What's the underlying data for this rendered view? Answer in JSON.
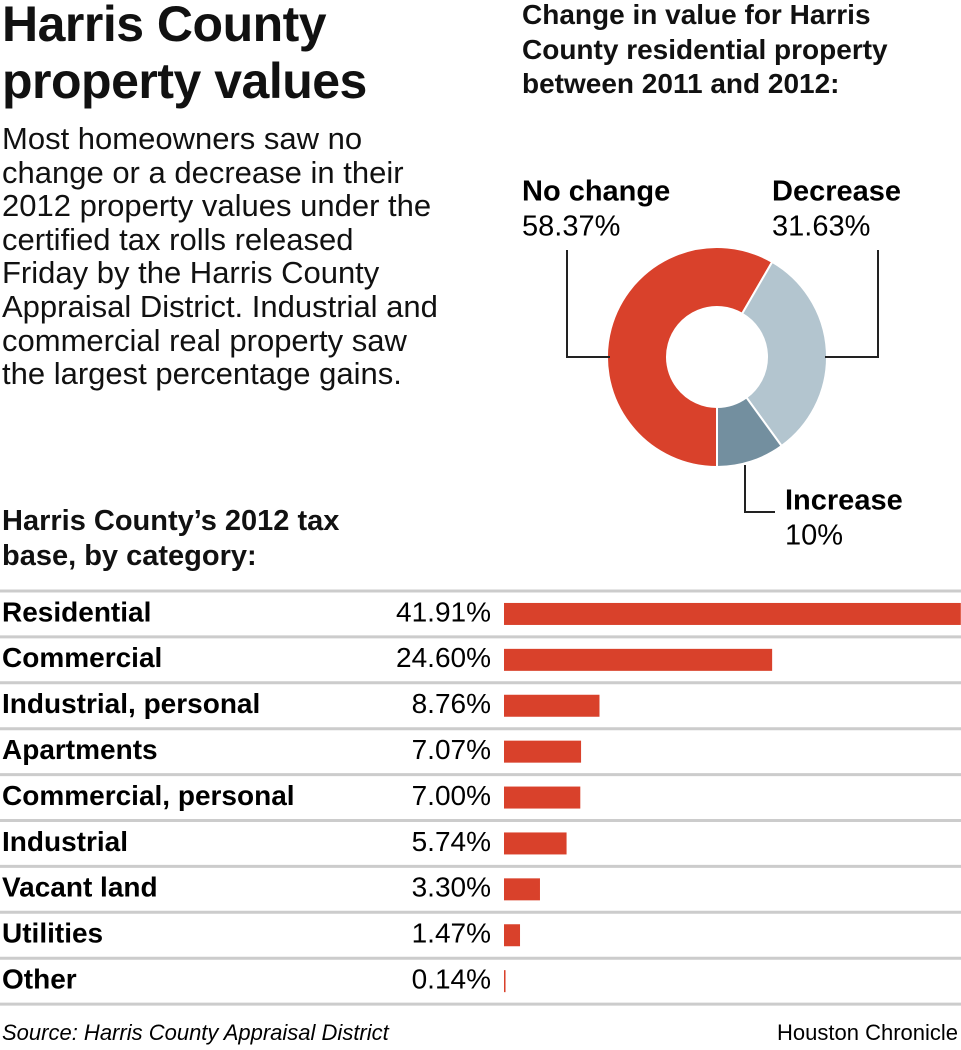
{
  "headline": "Harris County property values",
  "description": "Most homeowners saw no change or a decrease in their 2012 property values under the certified tax rolls released Friday by the Harris County Appraisal District. Industrial and commercial real property saw the largest percentage gains.",
  "chart_data": [
    {
      "type": "pie",
      "donut": true,
      "title": "Change in value for Harris County residential property between 2011 and 2012:",
      "categories": [
        "No change",
        "Decrease",
        "Increase"
      ],
      "values": [
        58.37,
        31.63,
        10
      ],
      "value_labels": [
        "58.37%",
        "31.63%",
        "10%"
      ],
      "colors": [
        "#d9412b",
        "#b3c5cf",
        "#738f9f"
      ]
    },
    {
      "type": "bar",
      "orientation": "horizontal",
      "title": "Harris County’s 2012 tax base, by category:",
      "categories": [
        "Residential",
        "Commercial",
        "Industrial, personal",
        "Apartments",
        "Commercial, personal",
        "Industrial",
        "Vacant land",
        "Utilities",
        "Other"
      ],
      "values": [
        41.91,
        24.6,
        8.76,
        7.07,
        7.0,
        5.74,
        3.3,
        1.47,
        0.14
      ],
      "value_labels": [
        "41.91%",
        "24.60%",
        "8.76%",
        "7.07%",
        "7.00%",
        "5.74%",
        "3.30%",
        "1.47%",
        "0.14%"
      ],
      "color": "#d9412b"
    }
  ],
  "source": "Source: Harris County Appraisal District",
  "credit": "Houston Chronicle"
}
